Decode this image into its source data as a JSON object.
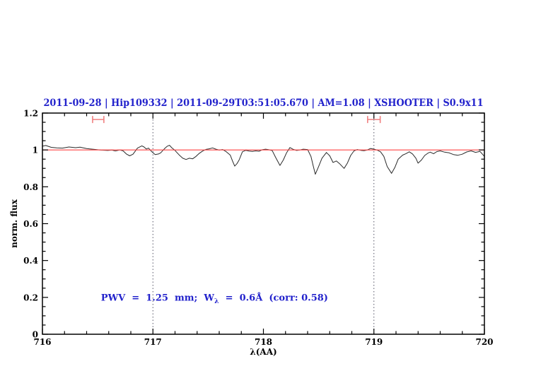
{
  "chart_data": {
    "type": "line",
    "title": "2011-09-28 | Hip109332 | 2011-09-29T03:51:05.670 | AM=1.08 | XSHOOTER | S0.9x11",
    "title_color": "#2222cc",
    "xlabel": "λ(AA)",
    "ylabel": "norm. flux",
    "xlim": [
      716,
      720
    ],
    "ylim": [
      0,
      1.2
    ],
    "x_ticks": [
      716,
      717,
      718,
      719,
      720
    ],
    "x_tick_labels": [
      "716",
      "717",
      "718",
      "719",
      "720"
    ],
    "x_minor_step": 0.2,
    "y_ticks": [
      0,
      0.2,
      0.4,
      0.6,
      0.8,
      1,
      1.2
    ],
    "y_tick_labels": [
      "0",
      "0.2",
      "0.4",
      "0.6",
      "0.8",
      "1",
      "1.2"
    ],
    "y_minor_step": 0.05,
    "grid": false,
    "legend": null,
    "annotation": {
      "part1": "PWV  =  1.25  mm;  W",
      "sub": "λ",
      "part2": "  =  0.6Å  (corr: 0.58)",
      "x": 716.53,
      "y": 0.2,
      "color": "#2222cc"
    },
    "series": [
      {
        "name": "spectrum-line",
        "type": "line",
        "color": "#2a2a2a",
        "x": [
          716.0,
          716.03,
          716.08,
          716.13,
          716.18,
          716.24,
          716.3,
          716.34,
          716.4,
          716.47,
          716.53,
          716.59,
          716.63,
          716.66,
          716.7,
          716.73,
          716.76,
          716.79,
          716.82,
          716.86,
          716.9,
          716.92,
          716.94,
          716.96,
          716.99,
          717.02,
          717.05,
          717.07,
          717.09,
          717.11,
          717.13,
          717.15,
          717.17,
          717.2,
          717.22,
          717.24,
          717.27,
          717.3,
          717.33,
          717.36,
          717.39,
          717.42,
          717.45,
          717.48,
          717.51,
          717.54,
          717.57,
          717.6,
          717.63,
          717.66,
          717.7,
          717.72,
          717.74,
          717.76,
          717.78,
          717.81,
          717.84,
          717.87,
          717.9,
          717.93,
          717.96,
          717.99,
          718.02,
          718.05,
          718.08,
          718.11,
          718.15,
          718.18,
          718.21,
          718.24,
          718.27,
          718.3,
          718.33,
          718.36,
          718.4,
          718.43,
          718.45,
          718.47,
          718.5,
          718.53,
          718.57,
          718.6,
          718.63,
          718.66,
          718.69,
          718.73,
          718.76,
          718.79,
          718.82,
          718.85,
          718.88,
          718.91,
          718.94,
          718.97,
          719.0,
          719.03,
          719.06,
          719.09,
          719.12,
          719.16,
          719.19,
          719.22,
          719.26,
          719.29,
          719.32,
          719.35,
          719.38,
          719.4,
          719.43,
          719.46,
          719.49,
          719.51,
          719.54,
          719.57,
          719.6,
          719.64,
          719.68,
          719.72,
          719.76,
          719.8,
          719.84,
          719.88,
          719.92,
          719.96,
          720.0
        ],
        "y": [
          1.02,
          1.024,
          1.014,
          1.011,
          1.01,
          1.016,
          1.012,
          1.015,
          1.007,
          1.003,
          0.999,
          0.997,
          0.999,
          0.994,
          1.0,
          0.995,
          0.978,
          0.968,
          0.977,
          1.01,
          1.022,
          1.016,
          1.005,
          1.01,
          0.99,
          0.975,
          0.978,
          0.984,
          0.997,
          1.01,
          1.02,
          1.025,
          1.012,
          0.997,
          0.984,
          0.971,
          0.955,
          0.948,
          0.955,
          0.952,
          0.965,
          0.982,
          0.994,
          1.003,
          1.006,
          1.011,
          1.004,
          0.999,
          1.002,
          0.992,
          0.972,
          0.94,
          0.912,
          0.925,
          0.945,
          0.99,
          0.998,
          0.994,
          0.992,
          0.995,
          0.993,
          1.001,
          1.004,
          1.001,
          0.996,
          0.96,
          0.916,
          0.945,
          0.985,
          1.013,
          1.003,
          0.997,
          1.0,
          1.004,
          1.002,
          0.965,
          0.915,
          0.868,
          0.91,
          0.955,
          0.986,
          0.968,
          0.932,
          0.94,
          0.925,
          0.9,
          0.928,
          0.97,
          0.995,
          1.002,
          0.998,
          0.996,
          1.0,
          1.008,
          1.004,
          0.999,
          0.99,
          0.965,
          0.91,
          0.873,
          0.905,
          0.95,
          0.972,
          0.98,
          0.99,
          0.978,
          0.955,
          0.928,
          0.945,
          0.97,
          0.983,
          0.988,
          0.979,
          0.991,
          0.995,
          0.988,
          0.984,
          0.975,
          0.971,
          0.977,
          0.989,
          0.995,
          0.987,
          0.992,
          0.965
        ]
      },
      {
        "name": "continuum-line",
        "type": "hline",
        "color": "#ff4444",
        "y": 1.0
      },
      {
        "name": "band-marker",
        "type": "errorbar-x",
        "color": "#f08080",
        "points": [
          {
            "x": 716.505,
            "xerr": 0.051,
            "y": 1.165
          },
          {
            "x": 719.0,
            "xerr": 0.057,
            "y": 1.165
          }
        ]
      },
      {
        "name": "integration-boundary-line",
        "type": "vlines",
        "color": "#555566",
        "style": "dotted",
        "x": [
          717,
          719
        ]
      }
    ]
  }
}
